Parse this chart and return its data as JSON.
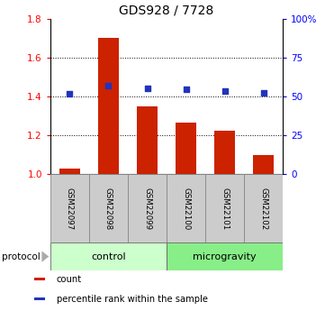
{
  "title": "GDS928 / 7728",
  "samples": [
    "GSM22097",
    "GSM22098",
    "GSM22099",
    "GSM22100",
    "GSM22101",
    "GSM22102"
  ],
  "bar_values": [
    1.03,
    1.7,
    1.35,
    1.265,
    1.225,
    1.1
  ],
  "percentile_values": [
    52,
    57,
    55,
    54.5,
    53.5,
    52.5
  ],
  "bar_color": "#cc2200",
  "dot_color": "#2233bb",
  "ylim_left": [
    1.0,
    1.8
  ],
  "ylim_right": [
    0,
    100
  ],
  "yticks_left": [
    1.0,
    1.2,
    1.4,
    1.6,
    1.8
  ],
  "yticks_right": [
    0,
    25,
    50,
    75,
    100
  ],
  "ytick_labels_right": [
    "0",
    "25",
    "50",
    "75",
    "100%"
  ],
  "groups": [
    {
      "label": "control",
      "color": "#ccffcc",
      "darker": "#99ee99"
    },
    {
      "label": "microgravity",
      "color": "#88ee88",
      "darker": "#55cc55"
    }
  ],
  "protocol_label": "protocol",
  "legend_items": [
    {
      "label": "count",
      "color": "#cc2200"
    },
    {
      "label": "percentile rank within the sample",
      "color": "#2233bb"
    }
  ],
  "sample_box_color": "#cccccc",
  "bar_width": 0.55,
  "background_color": "#ffffff",
  "grid_yticks": [
    1.2,
    1.4,
    1.6
  ]
}
